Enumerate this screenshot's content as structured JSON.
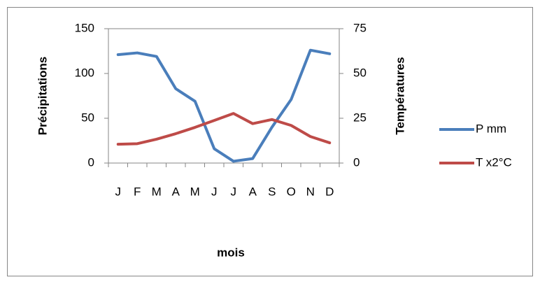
{
  "chart_data": {
    "type": "line",
    "categories": [
      "J",
      "F",
      "M",
      "A",
      "M",
      "J",
      "J",
      "A",
      "S",
      "O",
      "N",
      "D"
    ],
    "series": [
      {
        "name": "P mm",
        "color": "#4a7ebb",
        "values": [
          121,
          123,
          119,
          83,
          69,
          16,
          2,
          5,
          40,
          71,
          126,
          122
        ]
      },
      {
        "name": "T x2°C",
        "color": "#be4b48",
        "axis": "y2",
        "values": [
          10.5,
          10.8,
          13.3,
          16.4,
          19.9,
          23.8,
          27.7,
          22,
          24.3,
          21,
          14.8,
          11.3
        ]
      }
    ],
    "ylabel": "Précipitations",
    "y2label": "Températures",
    "xlabel": "mois",
    "ylim": [
      0,
      150
    ],
    "yticks": [
      0,
      50,
      100,
      150
    ],
    "y2lim": [
      0,
      75
    ],
    "y2ticks": [
      0,
      25,
      50,
      75
    ],
    "grid": false,
    "legend": "right"
  }
}
